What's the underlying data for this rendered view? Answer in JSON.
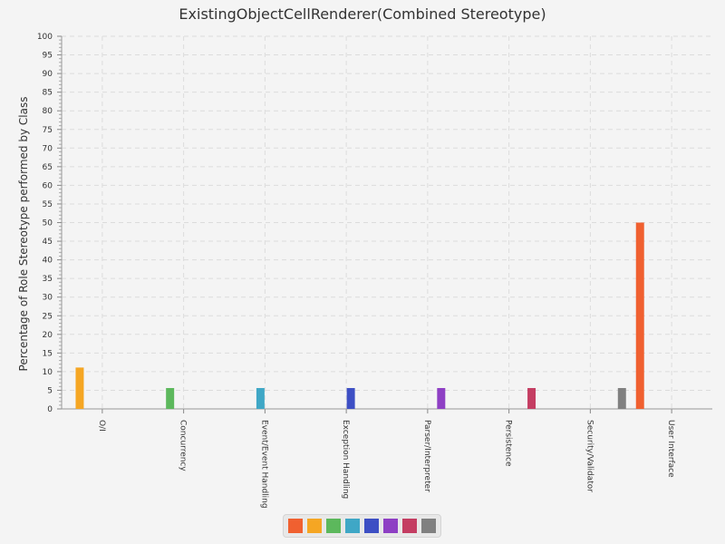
{
  "chart_data": {
    "type": "bar",
    "title": "ExistingObjectCellRenderer(Combined Stereotype)",
    "xlabel": "",
    "ylabel": "Percentage of Role Stereotype performed by Class",
    "ylim": [
      0,
      100
    ],
    "ytick_step": 5,
    "grid": true,
    "legend_position": "bottom",
    "categories": [
      "O/I",
      "Concurrency",
      "Event/Event Handling",
      "Exception Handling",
      "Parser/Interpreter",
      "Persistence",
      "Security/Validator",
      "User Interface"
    ],
    "series": [
      {
        "color": "#f06030",
        "values": [
          0,
          0,
          0,
          0,
          0,
          0,
          0,
          50
        ]
      },
      {
        "color": "#f5a623",
        "values": [
          11.1,
          0,
          0,
          0,
          0,
          0,
          0,
          0
        ]
      },
      {
        "color": "#5cb85c",
        "values": [
          0,
          5.6,
          0,
          0,
          0,
          0,
          0,
          0
        ]
      },
      {
        "color": "#3fa7c6",
        "values": [
          0,
          0,
          5.6,
          0,
          0,
          0,
          0,
          0
        ]
      },
      {
        "color": "#3d4fc4",
        "values": [
          0,
          0,
          0,
          5.6,
          0,
          0,
          0,
          0
        ]
      },
      {
        "color": "#8e3fc4",
        "values": [
          0,
          0,
          0,
          0,
          5.6,
          0,
          0,
          0
        ]
      },
      {
        "color": "#c43d62",
        "values": [
          0,
          0,
          0,
          0,
          0,
          5.6,
          0,
          0
        ]
      },
      {
        "color": "#808080",
        "values": [
          0,
          0,
          0,
          0,
          0,
          0,
          5.6,
          0
        ]
      }
    ]
  }
}
